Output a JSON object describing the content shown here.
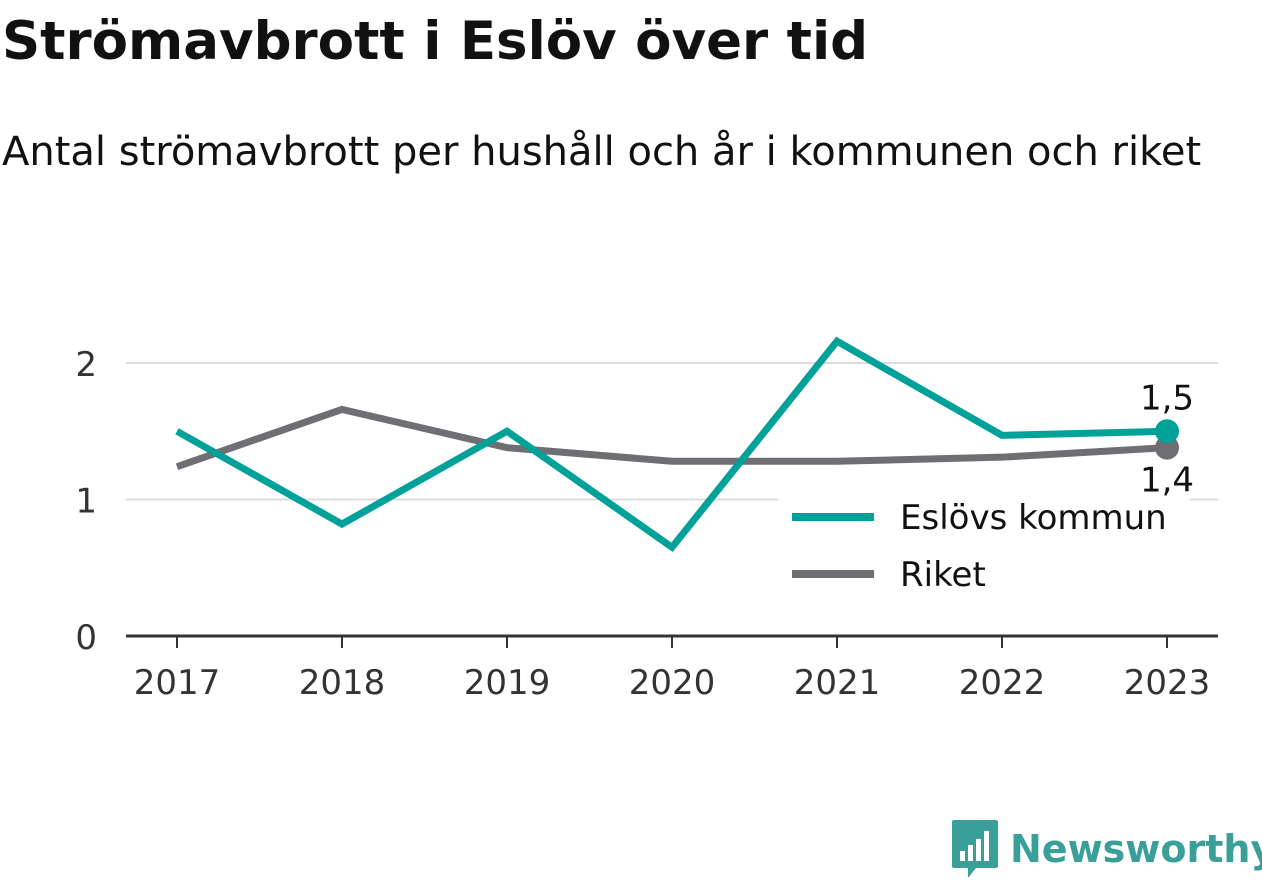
{
  "chart_data": {
    "type": "line",
    "title": "Strömavbrott i Eslöv över tid",
    "subtitle": "Antal strömavbrott per hushåll och år i kommunen och riket",
    "categories": [
      "2017",
      "2018",
      "2019",
      "2020",
      "2021",
      "2022",
      "2023"
    ],
    "yticks": [
      0,
      1,
      2
    ],
    "ylim": [
      0,
      2.35
    ],
    "grid": true,
    "legend_position": "right",
    "series": [
      {
        "name": "Eslövs kommun",
        "color": "#00a198",
        "values": [
          1.5,
          0.82,
          1.5,
          0.65,
          2.16,
          1.47,
          1.5
        ],
        "end_label": "1,5"
      },
      {
        "name": "Riket",
        "color": "#6f6e73",
        "values": [
          1.24,
          1.66,
          1.38,
          1.28,
          1.28,
          1.31,
          1.38
        ],
        "end_label": "1,4"
      }
    ]
  },
  "brand": {
    "name": "Newsworthy",
    "logo_icon": "newsworthy-logo-icon",
    "color": "#3a9e99"
  }
}
